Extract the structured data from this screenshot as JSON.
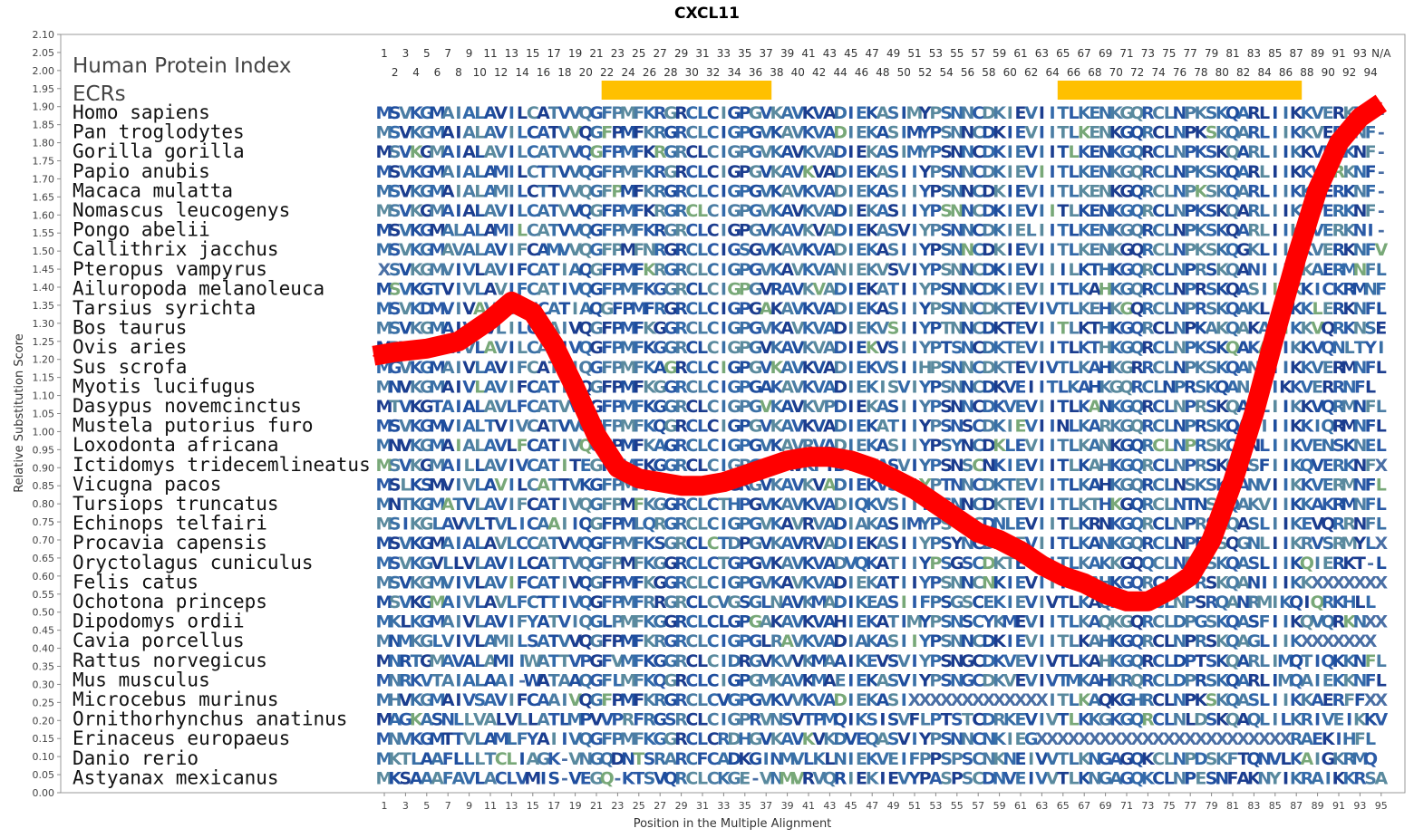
{
  "chart_data": {
    "type": "line",
    "title": "CXCL11",
    "xlabel": "Position in the Multiple Alignment",
    "ylabel": "Relative Substitution Score",
    "ylim": [
      0,
      2.1
    ],
    "y_ticks": [
      "0.00",
      "0.05",
      "0.10",
      "0.15",
      "0.20",
      "0.25",
      "0.30",
      "0.35",
      "0.40",
      "0.45",
      "0.50",
      "0.55",
      "0.60",
      "0.65",
      "0.70",
      "0.75",
      "0.80",
      "0.85",
      "0.90",
      "0.95",
      "1.00",
      "1.05",
      "1.10",
      "1.15",
      "1.20",
      "1.25",
      "1.30",
      "1.35",
      "1.40",
      "1.45",
      "1.50",
      "1.55",
      "1.60",
      "1.65",
      "1.70",
      "1.75",
      "1.80",
      "1.85",
      "1.90",
      "1.95",
      "2.00",
      "2.05",
      "2.10"
    ],
    "x_ticks": [
      "1",
      "3",
      "5",
      "7",
      "9",
      "11",
      "13",
      "15",
      "17",
      "19",
      "21",
      "23",
      "25",
      "27",
      "29",
      "31",
      "33",
      "35",
      "37",
      "39",
      "41",
      "43",
      "45",
      "47",
      "49",
      "51",
      "53",
      "55",
      "57",
      "59",
      "61",
      "63",
      "65",
      "67",
      "69",
      "71",
      "73",
      "75",
      "77",
      "79",
      "81",
      "83",
      "85",
      "87",
      "89",
      "91",
      "93",
      "95"
    ],
    "top_index_odd": [
      "1",
      "3",
      "5",
      "7",
      "9",
      "11",
      "13",
      "15",
      "17",
      "19",
      "21",
      "23",
      "25",
      "27",
      "29",
      "31",
      "33",
      "35",
      "37",
      "39",
      "41",
      "43",
      "45",
      "47",
      "49",
      "51",
      "53",
      "55",
      "57",
      "59",
      "61",
      "63",
      "65",
      "67",
      "69",
      "71",
      "73",
      "75",
      "77",
      "79",
      "81",
      "83",
      "85",
      "87",
      "89",
      "91",
      "93",
      "N/A"
    ],
    "top_index_even": [
      "2",
      "4",
      "6",
      "8",
      "10",
      "12",
      "14",
      "16",
      "18",
      "20",
      "22",
      "24",
      "26",
      "28",
      "30",
      "32",
      "34",
      "36",
      "38",
      "40",
      "42",
      "44",
      "46",
      "48",
      "50",
      "52",
      "54",
      "56",
      "58",
      "60",
      "62",
      "64",
      "66",
      "68",
      "70",
      "72",
      "74",
      "76",
      "78",
      "80",
      "82",
      "84",
      "86",
      "88",
      "90",
      "92",
      "94"
    ],
    "header_labels": {
      "protein_index": "Human Protein Index",
      "ecrs": "ECRs"
    },
    "ecr_regions": [
      [
        22,
        37
      ],
      [
        65,
        87
      ]
    ],
    "series": [
      {
        "color": "#ff0000",
        "x": [
          0,
          2,
          5,
          8,
          11,
          13,
          15,
          17,
          19,
          21,
          23,
          25,
          27,
          29,
          31,
          33,
          35,
          37,
          39,
          41,
          43,
          45,
          47,
          49,
          51,
          53,
          55,
          57,
          59,
          61,
          63,
          65,
          67,
          69,
          71,
          73,
          75,
          77,
          79,
          81,
          83,
          85,
          87,
          89,
          91,
          93,
          95
        ],
        "y": [
          1.21,
          1.22,
          1.23,
          1.25,
          1.31,
          1.36,
          1.33,
          1.24,
          1.12,
          0.99,
          0.9,
          0.87,
          0.86,
          0.85,
          0.85,
          0.86,
          0.88,
          0.9,
          0.92,
          0.93,
          0.93,
          0.92,
          0.9,
          0.87,
          0.84,
          0.8,
          0.76,
          0.72,
          0.7,
          0.67,
          0.63,
          0.6,
          0.58,
          0.55,
          0.53,
          0.53,
          0.56,
          0.6,
          0.7,
          0.86,
          1.05,
          1.27,
          1.48,
          1.67,
          1.8,
          1.87,
          1.91
        ]
      }
    ],
    "species": [
      "Homo sapiens",
      "Pan troglodytes",
      "Gorilla gorilla",
      "Papio anubis",
      "Macaca mulatta",
      "Nomascus leucogenys",
      "Pongo abelii",
      "Callithrix jacchus",
      "Pteropus vampyrus",
      "Ailuropoda melanoleuca",
      "Tarsius syrichta",
      "Bos taurus",
      "Ovis aries",
      "Sus scrofa",
      "Myotis lucifugus",
      "Dasypus novemcinctus",
      "Mustela putorius furo",
      "Loxodonta africana",
      "Ictidomys tridecemlineatus",
      "Vicugna pacos",
      "Tursiops truncatus",
      "Echinops telfairi",
      "Procavia capensis",
      "Oryctolagus cuniculus",
      "Felis catus",
      "Ochotona princeps",
      "Dipodomys ordii",
      "Cavia porcellus",
      "Rattus norvegicus",
      "Mus musculus",
      "Microcebus murinus",
      "Ornithorhynchus anatinus",
      "Erinaceus europaeus",
      "Danio rerio",
      "Astyanax mexicanus"
    ],
    "sequences": [
      "MSVKGMAIALAVILCATVVQGFPMFKRGRCLCIGPGVKAVKVADIEKASIMYPSNNCDKIEVIITLKENKGQRCLNPKSKQARLIIKKVERKNF-",
      "MSVKGMAIALAVILCATVVQGFPMFKRGRCLCIGPGVKAVKVADIEKASIMYPSNNCDKIEVIITLKENKGQRCLNPKSKQARLIIKKVERKNF-",
      "MSVKGMAIALAVILCATVVQGFPMFKRGRCLCIGPGVKAVKVADIEKASIMYPSNNCDKIEVIITLKENKGQRCLNPKSKQARLIIKKVERKNF-",
      "MSVKGMAIALAMILCTTVVQGFPMFKRGRCLCIGPGVKAVKVADIEKASIIYPSNNCDKIEVIITLKENKGQRCLNPKSKQARLIIKKVERKNF-",
      "MSVKGMAIALAMILCTTVVQGFPMFKRGRCLCIGPGVKAVKVADIEKASIIYPSNNCDKIEVIITLKENKGQRCLNPKSKQARLIIKKVERKNF-",
      "MSVKGMAIALAVILCATVVQGFPMFKRGRCLCIGPGVKAVKVADIEKASIIYPSNNCDKIEVIITLKENKGQRCLNPKSKQARLIIKKVERKNF-",
      "MSVKGMALALAMILCATVVQGFPMFKRGRCLCIGPGVKAVKVADIEKASVIYPSNNCDKIELIITLKENKGQRCLNPKSKQARLIIKKVERKNI-",
      "MSVKGMAVALAVIFCAMVVQGFPMFNRGRCLCIGSGVKAVKVADIEKASIIYPSNNCDKIEVIITLKENKGQRCLNPKSKQGKLIIKKVERKNFV",
      "XSVKGMVIVLAVIFCATIAQGFPMFKRGRCLCIGPGVKAVKVANIEKVSVIYPSNNCDKIEVIIILKTHKGQRCLNPRSKQANIIIKKAERMNFL",
      "MSVKGTVIVLAVIFCATIVQGFPMFKGGRCLCIGPGVRAVKVADIEKATIIYPSNNCDKIEVIITLKAHKGQRCLNPRSKQASIIMKKICKRMNF-",
      "MSVKDMVIVAVAVIFCATIAQGFPMFRGRCLCIGPGAKAVKVADIEKASIIYPSNNCDKTEVIVTLKEHKGQRCLNPRSKQAKLIIKKLERKNFL",
      "MSVKGMAIVLVLILCAAIVQGFPMFKGGRCLCIGPGVKAVKVADIEKVSIIYPTNNCDKTEVIITLKTHKGQRCLNPKAKQAKAIIKKVQRKNSE",
      "MRVKGMAIVLAVILCAAIVQGFPMFKGGRCLCIGPGVKAVKVADIEKVSIIYPTSNCDKTEVIITLKTHKGQRCLNPKSKQAKAIIKKVQNLTYI",
      "MGVKGMAIVLAVIFCATTIQGFPMFKAGRCLCIGPGVKAVKVADIEKVSIIHPSNNCDKTEVIVTLKAHKGRRCLNPKSKQANVIIKKVERMNFL",
      "MNVKGMAIVLAVIFCATIAQGFPMFKGGRCLCIGPGAKAVKVADIEKISVIYPSNNCDKVEIITLKAHKGQRCLNPRSKQANIIIKKVERRNFL",
      "MTVKGTAIALAVLFCATVVQGFPMFKGGRCLCIGPGVKAVKVPDIEKASIIYPSNNCDKVEVIITLKANKGQRCLNPRSKQANLIIKKVQRMNFL",
      "MSVKGMVIALTVIVCATVVQGFPMFKQGRCLCIGPGVKAVKVADIEKATIIYPSNSCDKIEVIINLKARKGQRCLNPRSKQASIIIKKIQRMNFL",
      "MNVKGMAIALAVLFCATIVQGFPMFKAGRCLCIGPGVKAVRVADIEKASIIYPSYNCDKLEVIITLKANKGQRCLNPRSKQANLIIKVENSKNEL",
      "MSVKGMAILLAVIVCATITEGFPMFKGGRCLCIGPGVKAVKFTDIEKASVIYPSNSCNKIEVIITLKAHKGQRCLNPRSKQASFIIKQVERKNFX",
      "MSLKSMVIVLAVILCATTVKGFPMFKGGRCLCIGRGVKAVKVADIEKVSIIYPTNNCDKTEVIITLKAHKGQRCLNSKSKQANVIIKKVERMNFL",
      "MNTKGMATVLAVIFCATIVQGFPMFKGGRCLCTHPGVKAVKVADIQKVSIIYPSNNCDKTEVIITLKTHKGQRCLNTNSKQAKVIIKKAKRMNFL",
      "MSIKGLAVVLTVLICAAIIQGFPMLQRGRCLCIGPGVKAVRVADIAKASIMYPSYNCDNLEVIITLKRNKGQRCLNPRSKQASLIIKEVQRRNFL",
      "MSVKGMAIALAVLCCATVVQGFPMFKSGRCLCTDPGVKAVRVADIEKASIIYPSYNCDKIEVIITLKANKGQRCLNPRSSQGNLIIKRVSRMYLX",
      "MSVKGVLLVLAVILCATTVQGFPMFKGGRCLCTGPGVKAVKVADVQKATIIYPSGSCDKTEVIITLKAKKGQQCLNPRSKQASLIIKQIERKT-L",
      "MSVKGMVIVLAVIFCATIVQGFPMFKGGRCLCIGPGVKAVKVADIEKATIIYPSNNCNKIEVIITLKAHKGQRCLNPRSKQANIIIKKXXXXXXX",
      "MSVKGMAIVLAVLFCTTIVQGFPMFRRGRCLCVGSGLNAVKMADIKEASIIFPSGSCEKIEVIVTLKAQKGQRCLNPSRQANRMIKQIQRKHLL",
      "MKLKGMAIVLAVIFYATVIQGLPMFKGGRCLCLGPGAKAVKVAHIEKATIMYPSNSCYKMEVIITLKAQKGQRCLDPGSKQASFIIKQVQRKNXX",
      "MNMKGLVIVLAMILSATVVQGFPMFKRGRCLCIGPGLRAVKVADIAKASIIYPSNNCDKIEVIITLKAHKGQRCLNPRSKQAGLIIKXXXXXXX",
      "MNRTGMAVALAMIIWATTVPGFVMFKGGRCLCIDRGVKVVKMAAIKEVSVIYPSNGCDKVEVIVTLKAHKGQRCLDPTSKQARLIMQTIQKKNFL",
      "MNRKVTAIALAAI-WATAAQGFLMFKQGRCLCIGPGMKAVKMAEIEKASVIYPSNGCDKVEVIVTMKAHKRQRCLDPRSKQARLIMQAIEKKNFL",
      "MHVKGMAIVSAVIFCAAIVQGFPMFKRGRCLCVGPGVKVVKVADIEKASIXXXXXXXXXXXXXITLKAQKGHRCLNPKSKQASLIIKKAERFFXX",
      "MAGKASNLLVALVLLATLMPVVPRFRGSRCLCIGPRVNSVTPMQIKSISVFLPTSTCDRKEVIVTLKKGKGQRCLNLDSKQAQLILKRIVEIKKV",
      "MNVKGMTTVLAMLFYAIIVQGFPMFKGGRCLCRDHGVKAVKVKDVEQASVIYPSNNCNKIEGXXXXXXXXXXXXXXXXXXXXXXXXRAEKIHFL",
      "MKTLAAFLLLTCLIAGK-VNGQDNTSRARCFCADKGINMVLKLNIEKVEIFPPSPSCNKNEIVVTLKNGAGQKCLNPDSKFTQNVLKAIGKRMQ",
      "MKSAAAFAVLACLVMIS-VEGQ-KTSVQRCLCKGE-VNMVRVQRIEKIEVYPASPSCDNVEIVVTLKNGAGQKCLNPESNFAKNYIKRAIKKRSA"
    ]
  }
}
